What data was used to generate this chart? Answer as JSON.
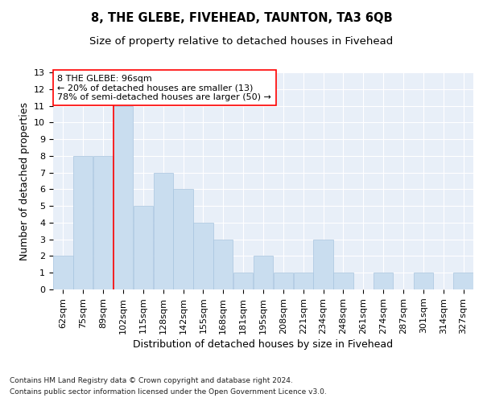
{
  "title1": "8, THE GLEBE, FIVEHEAD, TAUNTON, TA3 6QB",
  "title2": "Size of property relative to detached houses in Fivehead",
  "xlabel": "Distribution of detached houses by size in Fivehead",
  "ylabel": "Number of detached properties",
  "categories": [
    "62sqm",
    "75sqm",
    "89sqm",
    "102sqm",
    "115sqm",
    "128sqm",
    "142sqm",
    "155sqm",
    "168sqm",
    "181sqm",
    "195sqm",
    "208sqm",
    "221sqm",
    "234sqm",
    "248sqm",
    "261sqm",
    "274sqm",
    "287sqm",
    "301sqm",
    "314sqm",
    "327sqm"
  ],
  "values": [
    2,
    8,
    8,
    11,
    5,
    7,
    6,
    4,
    3,
    1,
    2,
    1,
    1,
    3,
    1,
    0,
    1,
    0,
    1,
    0,
    1
  ],
  "bar_color": "#c9ddef",
  "bar_edgecolor": "#a8c4df",
  "red_line_x": 2.5,
  "annotation_title": "8 THE GLEBE: 96sqm",
  "annotation_line1": "← 20% of detached houses are smaller (13)",
  "annotation_line2": "78% of semi-detached houses are larger (50) →",
  "ylim": [
    0,
    13
  ],
  "yticks": [
    0,
    1,
    2,
    3,
    4,
    5,
    6,
    7,
    8,
    9,
    10,
    11,
    12,
    13
  ],
  "footnote1": "Contains HM Land Registry data © Crown copyright and database right 2024.",
  "footnote2": "Contains public sector information licensed under the Open Government Licence v3.0.",
  "background_color": "#e8eff8",
  "grid_color": "#ffffff",
  "title1_fontsize": 10.5,
  "title2_fontsize": 9.5,
  "axis_label_fontsize": 9,
  "tick_fontsize": 8,
  "annotation_fontsize": 8
}
